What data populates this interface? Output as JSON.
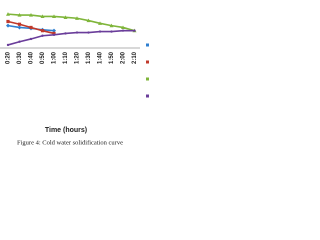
{
  "chart_data": {
    "type": "line",
    "x_label": "Time (hours)",
    "caption": "Figure 4: Cold water solidification curve",
    "categories": [
      "0:20",
      "0:30",
      "0:40",
      "0:50",
      "1:00",
      "1:10",
      "1:20",
      "1:30",
      "1:40",
      "1:50",
      "2:00",
      "2:10"
    ],
    "ylim": [
      0,
      100
    ],
    "series": [
      {
        "color": "#2f7fd0",
        "marker": "diamond",
        "values": [
          53,
          49,
          47,
          44,
          42,
          null,
          null,
          null,
          null,
          null,
          null,
          null
        ]
      },
      {
        "color": "#c0392b",
        "marker": "square",
        "values": [
          62,
          56,
          49,
          42,
          36,
          null,
          null,
          null,
          null,
          null,
          null,
          null
        ]
      },
      {
        "color": "#7fb53a",
        "marker": "triangle",
        "values": [
          78,
          76,
          76,
          73,
          73,
          71,
          69,
          64,
          58,
          53,
          49,
          42
        ]
      },
      {
        "color": "#6a3d9a",
        "marker": "cross",
        "values": [
          11,
          18,
          24,
          31,
          33,
          36,
          38,
          38,
          40,
          40,
          42,
          42
        ]
      }
    ]
  }
}
